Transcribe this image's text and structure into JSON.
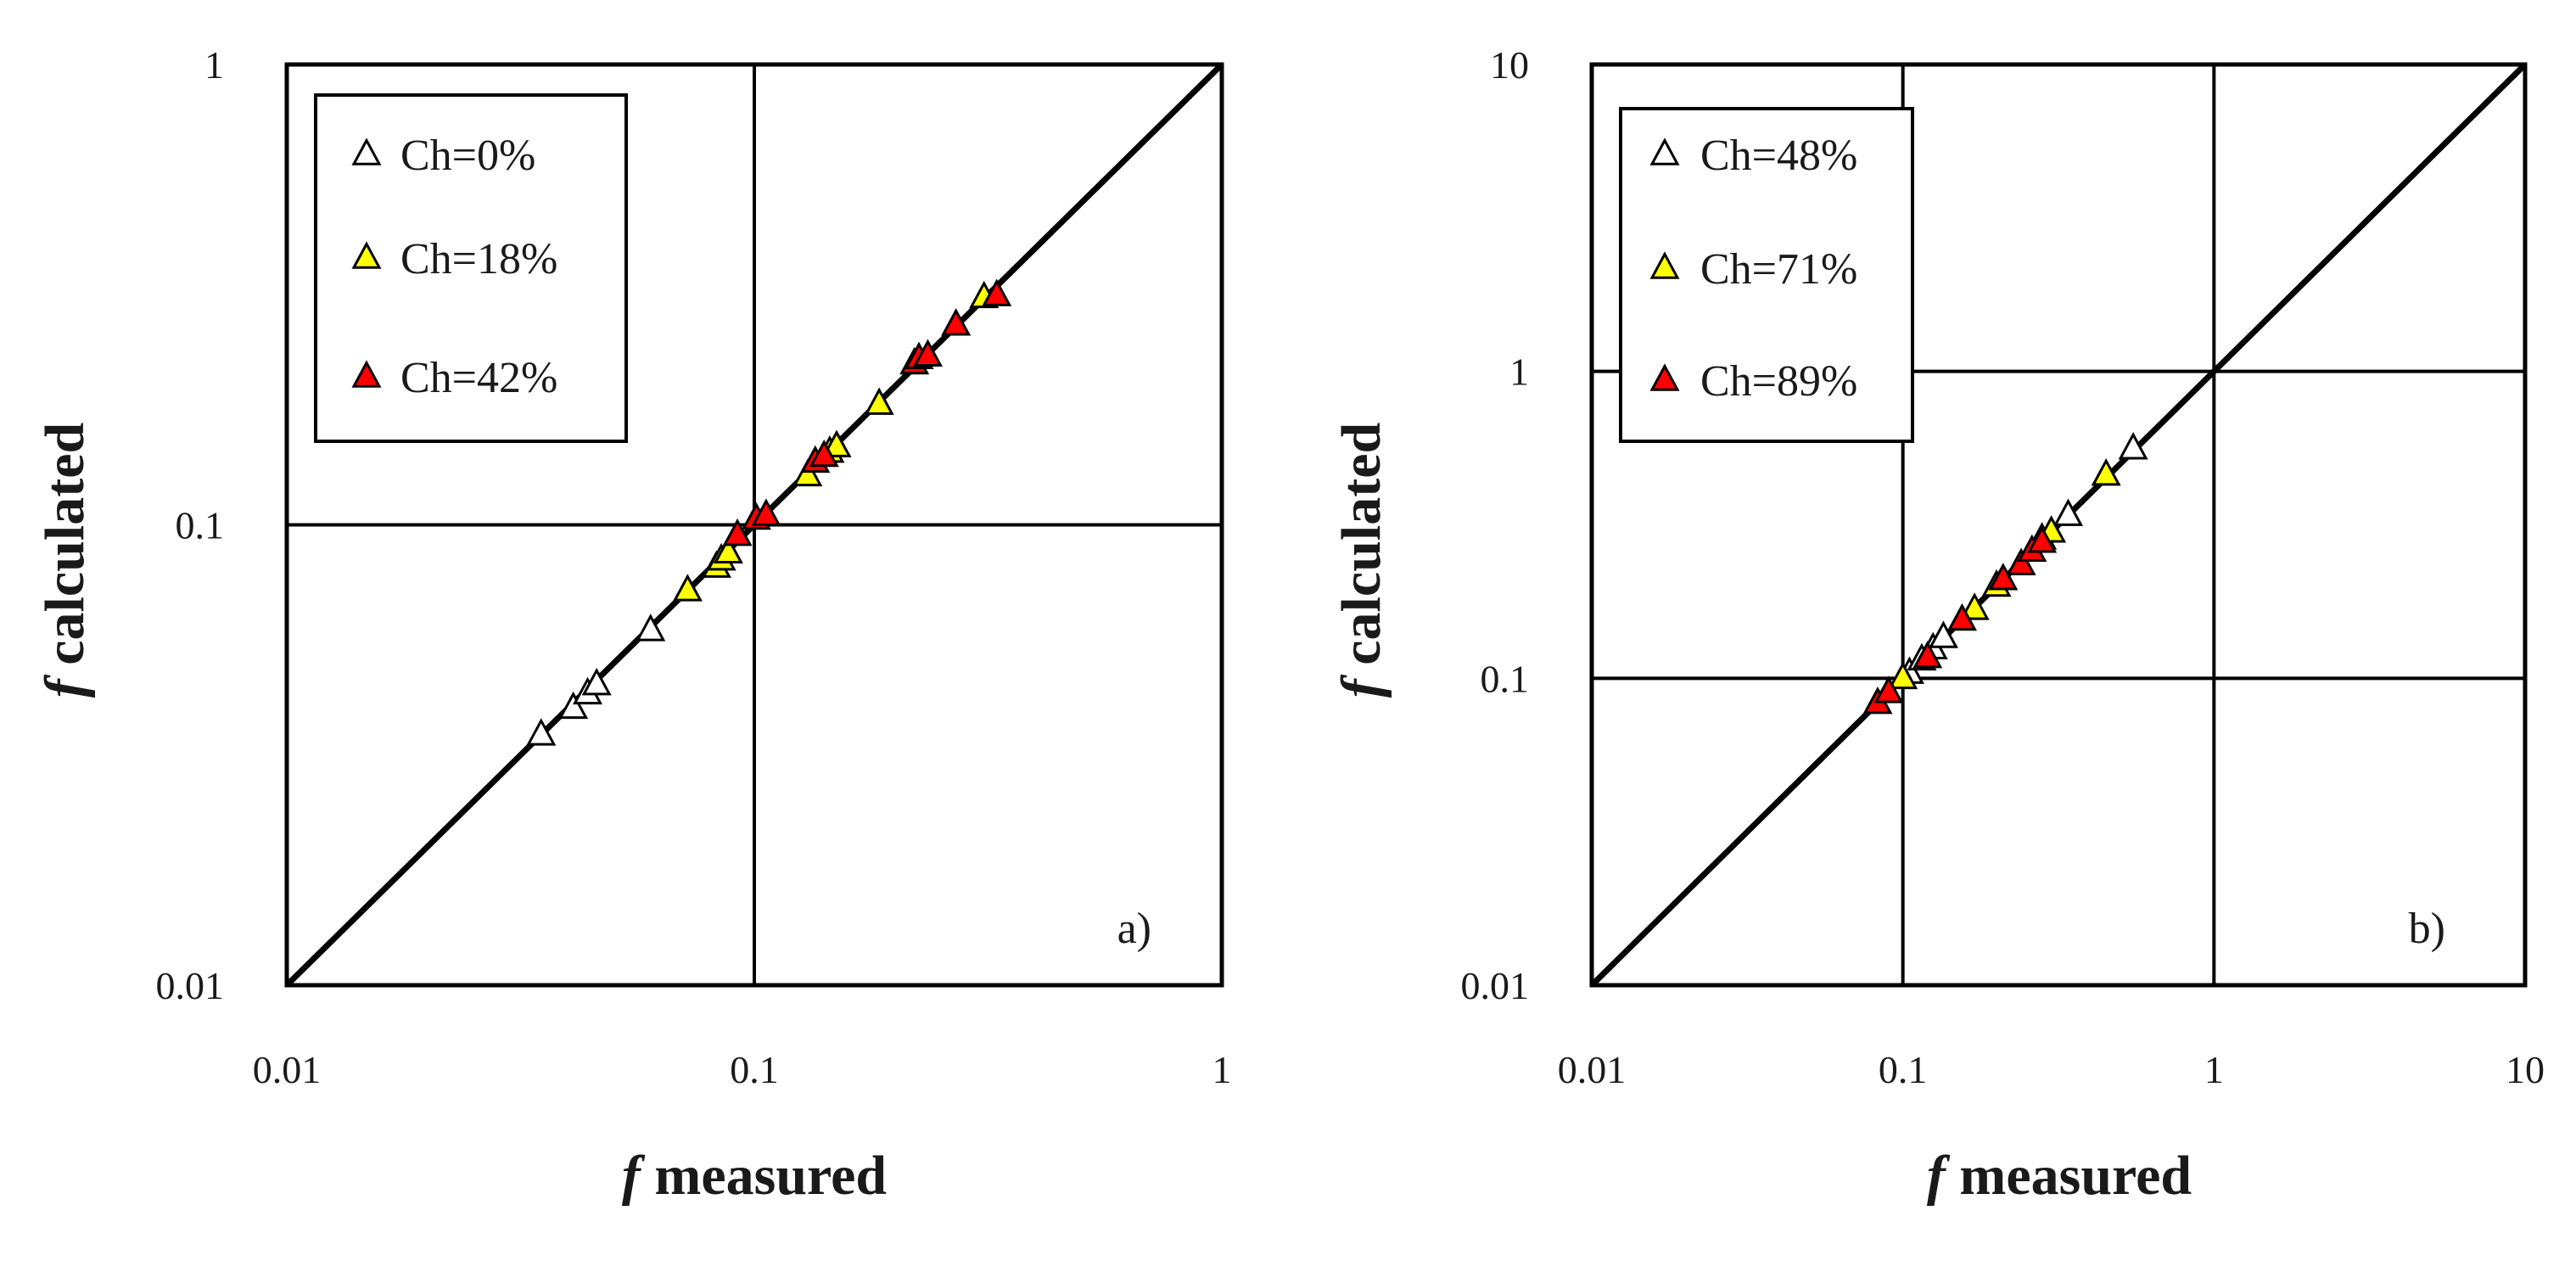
{
  "chart_data": [
    {
      "type": "scatter",
      "panel": "a)",
      "xlabel_symbol": "f",
      "xlabel_text": "measured",
      "ylabel_symbol": "f",
      "ylabel_text": "calculated",
      "xscale": "log",
      "yscale": "log",
      "xlim": [
        0.01,
        1
      ],
      "ylim": [
        0.01,
        1
      ],
      "xticks": [
        "0.01",
        "0.1",
        "1"
      ],
      "yticks": [
        "0.01",
        "0.1",
        "1"
      ],
      "grid": true,
      "reference_line": "y = x",
      "legend_position": "top-left",
      "series": [
        {
          "name": "Ch=0%",
          "color": "#ffffff",
          "points": [
            [
              0.035,
              0.035
            ],
            [
              0.041,
              0.04
            ],
            [
              0.044,
              0.043
            ],
            [
              0.046,
              0.045
            ],
            [
              0.06,
              0.059
            ]
          ]
        },
        {
          "name": "Ch=18%",
          "color": "#ffff00",
          "points": [
            [
              0.072,
              0.072
            ],
            [
              0.083,
              0.081
            ],
            [
              0.085,
              0.084
            ],
            [
              0.088,
              0.087
            ],
            [
              0.13,
              0.128
            ],
            [
              0.145,
              0.144
            ],
            [
              0.15,
              0.148
            ],
            [
              0.185,
              0.183
            ],
            [
              0.31,
              0.312
            ]
          ]
        },
        {
          "name": "Ch=42%",
          "color": "#ff0000",
          "points": [
            [
              0.092,
              0.095
            ],
            [
              0.101,
              0.103
            ],
            [
              0.106,
              0.105
            ],
            [
              0.135,
              0.137
            ],
            [
              0.141,
              0.141
            ],
            [
              0.22,
              0.224
            ],
            [
              0.225,
              0.23
            ],
            [
              0.235,
              0.233
            ],
            [
              0.27,
              0.272
            ],
            [
              0.33,
              0.315
            ]
          ]
        }
      ]
    },
    {
      "type": "scatter",
      "panel": "b)",
      "xlabel_symbol": "f",
      "xlabel_text": "measured",
      "ylabel_symbol": "f",
      "ylabel_text": "calculated",
      "xscale": "log",
      "yscale": "log",
      "xlim": [
        0.01,
        10
      ],
      "ylim": [
        0.01,
        10
      ],
      "xticks": [
        "0.01",
        "0.1",
        "1",
        "10"
      ],
      "yticks": [
        "0.01",
        "0.1",
        "1",
        "10"
      ],
      "grid": true,
      "reference_line": "y = x",
      "legend_position": "top-left",
      "series": [
        {
          "name": "Ch=48%",
          "color": "#ffffff",
          "points": [
            [
              0.105,
              0.104
            ],
            [
              0.115,
              0.115
            ],
            [
              0.125,
              0.125
            ],
            [
              0.135,
              0.136
            ],
            [
              0.28,
              0.285
            ],
            [
              0.34,
              0.34
            ],
            [
              0.55,
              0.56
            ]
          ]
        },
        {
          "name": "Ch=71%",
          "color": "#ffff00",
          "points": [
            [
              0.1,
              0.1
            ],
            [
              0.17,
              0.168
            ],
            [
              0.2,
              0.2
            ],
            [
              0.3,
              0.3
            ],
            [
              0.45,
              0.46
            ]
          ]
        },
        {
          "name": "Ch=89%",
          "color": "#ff0000",
          "points": [
            [
              0.083,
              0.083
            ],
            [
              0.09,
              0.09
            ],
            [
              0.12,
              0.117
            ],
            [
              0.155,
              0.155
            ],
            [
              0.21,
              0.21
            ],
            [
              0.24,
              0.235
            ],
            [
              0.26,
              0.26
            ],
            [
              0.28,
              0.278
            ]
          ]
        }
      ]
    }
  ]
}
